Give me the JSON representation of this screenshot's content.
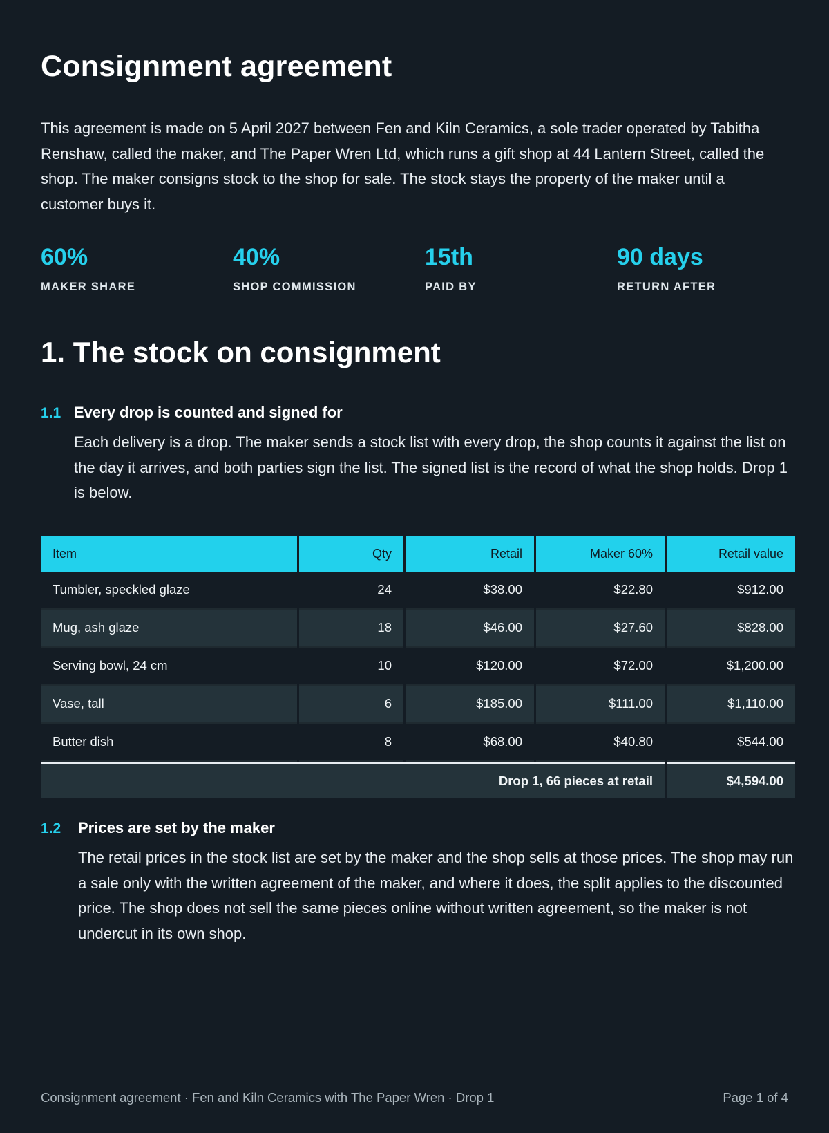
{
  "title": "Consignment agreement",
  "intro": "This agreement is made on 5 April 2027 between Fen and Kiln Ceramics, a sole trader operated by Tabitha Renshaw, called the maker, and The Paper Wren Ltd, which runs a gift shop at 44 Lantern Street, called the shop. The maker consigns stock to the shop for sale. The stock stays the property of the maker until a customer buys it.",
  "stats": [
    {
      "value": "60%",
      "label": "MAKER SHARE"
    },
    {
      "value": "40%",
      "label": "SHOP COMMISSION"
    },
    {
      "value": "15th",
      "label": "PAID BY"
    },
    {
      "value": "90 days",
      "label": "RETURN AFTER"
    }
  ],
  "section1": {
    "heading": "1. The stock on consignment",
    "clauses": [
      {
        "num": "1.1",
        "title": "Every drop is counted and signed for",
        "body": "Each delivery is a drop. The maker sends a stock list with every drop, the shop counts it against the list on the day it arrives, and both parties sign the list. The signed list is the record of what the shop holds. Drop 1 is below."
      },
      {
        "num": "1.2",
        "title": "Prices are set by the maker",
        "body": "The retail prices in the stock list are set by the maker and the shop sells at those prices. The shop may run a sale only with the written agreement of the maker, and where it does, the split applies to the discounted price. The shop does not sell the same pieces online without written agreement, so the maker is not undercut in its own shop."
      }
    ]
  },
  "stock_table": {
    "headers": [
      "Item",
      "Qty",
      "Retail",
      "Maker 60%",
      "Retail value"
    ],
    "rows": [
      [
        "Tumbler, speckled glaze",
        "24",
        "$38.00",
        "$22.80",
        "$912.00"
      ],
      [
        "Mug, ash glaze",
        "18",
        "$46.00",
        "$27.60",
        "$828.00"
      ],
      [
        "Serving bowl, 24 cm",
        "10",
        "$120.00",
        "$72.00",
        "$1,200.00"
      ],
      [
        "Vase, tall",
        "6",
        "$185.00",
        "$111.00",
        "$1,110.00"
      ],
      [
        "Butter dish",
        "8",
        "$68.00",
        "$40.80",
        "$544.00"
      ]
    ],
    "total_label": "Drop 1, 66 pieces at retail",
    "total_value": "$4,594.00"
  },
  "footer": {
    "left": "Consignment agreement · Fen and Kiln Ceramics with The Paper Wren · Drop 1",
    "right": "Page 1 of 4"
  }
}
